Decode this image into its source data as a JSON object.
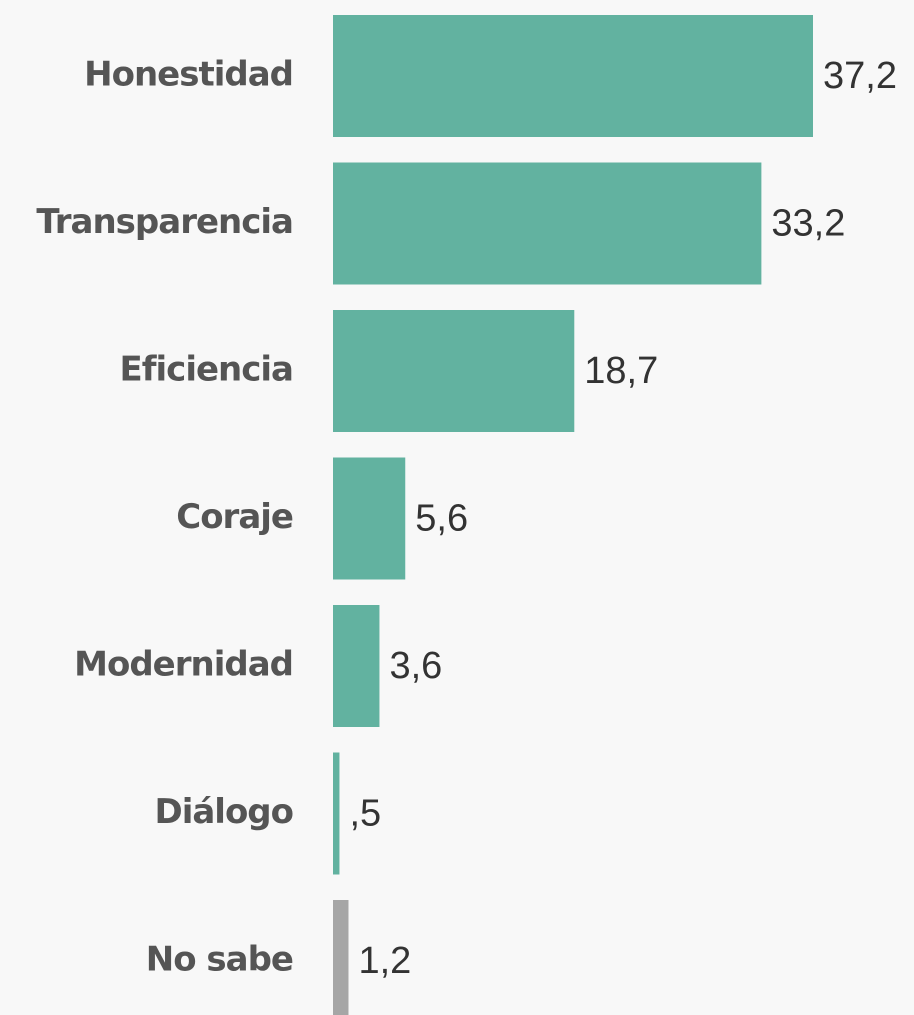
{
  "chart_data": {
    "type": "bar",
    "orientation": "horizontal",
    "categories": [
      "Honestidad",
      "Transparencia",
      "Eficiencia",
      "Coraje",
      "Modernidad",
      "Diálogo",
      "No sabe"
    ],
    "values": [
      37.2,
      33.2,
      18.7,
      5.6,
      3.6,
      0.5,
      1.2
    ],
    "value_labels": [
      "37,2",
      "33,2",
      "18,7",
      "5,6",
      "3,6",
      ",5",
      "1,2"
    ],
    "colors": [
      "#62b2a0",
      "#62b2a0",
      "#62b2a0",
      "#62b2a0",
      "#62b2a0",
      "#62b2a0",
      "#a6a6a6"
    ]
  }
}
